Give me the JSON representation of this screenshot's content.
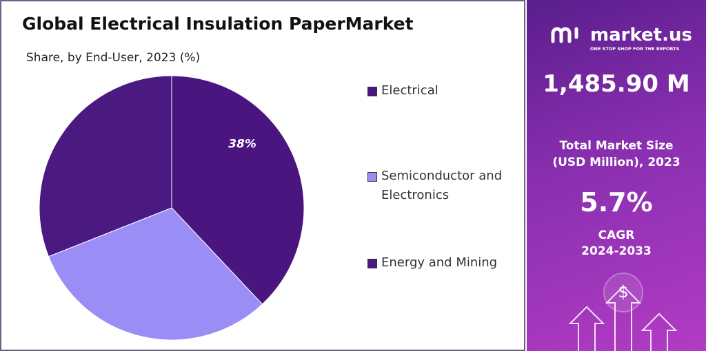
{
  "chart_data": {
    "type": "pie",
    "title": "Global Electrical Insulation PaperMarket",
    "subtitle": "Share, by End-User, 2023 (%)",
    "categories": [
      "Electrical",
      "Semiconductor and Electronics",
      "Energy and Mining"
    ],
    "values": [
      38,
      31,
      31
    ],
    "value_labels": [
      "38%",
      null,
      null
    ],
    "colors": [
      "#4b157f",
      "#9b8df6",
      "#4a1a80"
    ],
    "legend": "right"
  },
  "panel": {
    "brand": "market.us",
    "tagline": "ONE STOP SHOP FOR THE REPORTS",
    "market_size": "1,485.90 M",
    "market_size_label": "Total Market Size",
    "market_size_unit": "(USD Million), 2023",
    "cagr": "5.7%",
    "cagr_label": "CAGR",
    "cagr_period": "2024-2033"
  }
}
